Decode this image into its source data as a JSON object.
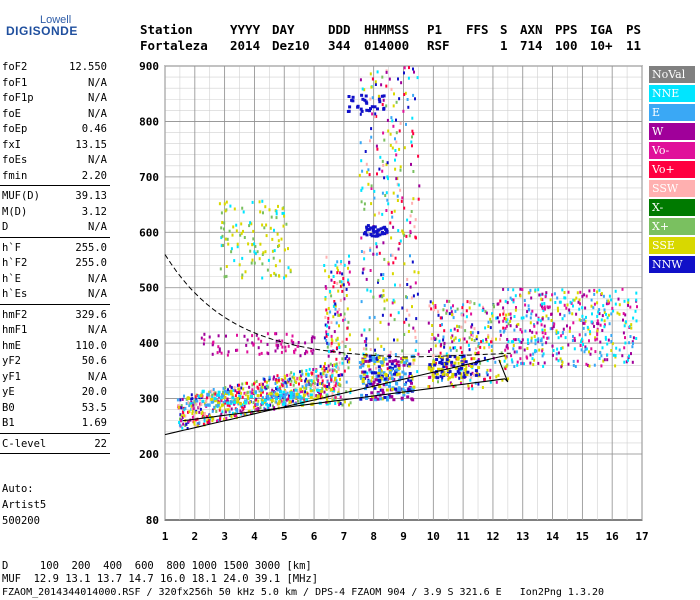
{
  "logo": {
    "line1": "Lowell",
    "line2": "DIGISONDE"
  },
  "header": {
    "row1": [
      "Station",
      "YYYY",
      "DAY",
      "DDD",
      "HHMMSS",
      "P1",
      "FFS",
      "S",
      "AXN",
      "PPS",
      "IGA",
      "PS"
    ],
    "row2": [
      "Fortaleza",
      "2014",
      "Dez10",
      "344",
      "014000",
      "RSF",
      "",
      "1",
      "714",
      "100",
      "10+",
      "11"
    ]
  },
  "params_group1": [
    {
      "k": "foF2",
      "v": "12.550"
    },
    {
      "k": "foF1",
      "v": "N/A"
    },
    {
      "k": "foF1p",
      "v": "N/A"
    },
    {
      "k": "foE",
      "v": "N/A"
    },
    {
      "k": "foEp",
      "v": "0.46"
    },
    {
      "k": "fxI",
      "v": "13.15"
    },
    {
      "k": "foEs",
      "v": "N/A"
    },
    {
      "k": "fmin",
      "v": "2.20"
    }
  ],
  "params_group2": [
    {
      "k": "MUF(D)",
      "v": "39.13"
    },
    {
      "k": "M(D)",
      "v": "3.12"
    },
    {
      "k": "D",
      "v": "N/A"
    }
  ],
  "params_group3": [
    {
      "k": "h`F",
      "v": "255.0"
    },
    {
      "k": "h`F2",
      "v": "255.0"
    },
    {
      "k": "h`E",
      "v": "N/A"
    },
    {
      "k": "h`Es",
      "v": "N/A"
    }
  ],
  "params_group4": [
    {
      "k": "hmF2",
      "v": "329.6"
    },
    {
      "k": "hmF1",
      "v": "N/A"
    },
    {
      "k": "hmE",
      "v": "110.0"
    },
    {
      "k": "yF2",
      "v": "50.6"
    },
    {
      "k": "yF1",
      "v": "N/A"
    },
    {
      "k": "yE",
      "v": "20.0"
    },
    {
      "k": "B0",
      "v": "53.5"
    },
    {
      "k": "B1",
      "v": "1.69"
    }
  ],
  "clevel": {
    "k": "C-level",
    "v": "22"
  },
  "auto": {
    "line1": "Auto:",
    "line2": "Artist5",
    "line3": "500200"
  },
  "legend": [
    {
      "label": "NoVal",
      "color": "#808080"
    },
    {
      "label": "NNE",
      "color": "#00e5ff"
    },
    {
      "label": "E",
      "color": "#3aa8f5"
    },
    {
      "label": "W",
      "color": "#a0009a"
    },
    {
      "label": "Vo-",
      "color": "#e0109a"
    },
    {
      "label": "Vo+",
      "color": "#ff0040"
    },
    {
      "label": "SSW",
      "color": "#ffb0b0"
    },
    {
      "label": "X-",
      "color": "#007a00"
    },
    {
      "label": "X+",
      "color": "#7ac060"
    },
    {
      "label": "SSE",
      "color": "#d8d800"
    },
    {
      "label": "NNW",
      "color": "#1010c8"
    }
  ],
  "chart_data": {
    "type": "scatter",
    "x_ticks": [
      "1",
      "2",
      "3",
      "4",
      "5",
      "6",
      "7",
      "8",
      "9",
      "10",
      "11",
      "12",
      "13",
      "14",
      "15",
      "16",
      "17"
    ],
    "y_ticks": [
      "80",
      "200",
      "300",
      "400",
      "500",
      "600",
      "700",
      "800",
      "900"
    ],
    "xlim": [
      1,
      17
    ],
    "ylim": [
      80,
      900
    ]
  },
  "footer": {
    "line1": "D     100  200  400  600  800 1000 1500 3000 [km]",
    "line2": "MUF  12.9 13.1 13.7 14.7 16.0 18.1 24.0 39.1 [MHz]",
    "line3": "FZAOM_2014344014000.RSF / 320fx256h 50 kHz 5.0 km / DPS-4 FZAOM 904 / 3.9 S 321.6 E   Ion2Png 1.3.20"
  }
}
